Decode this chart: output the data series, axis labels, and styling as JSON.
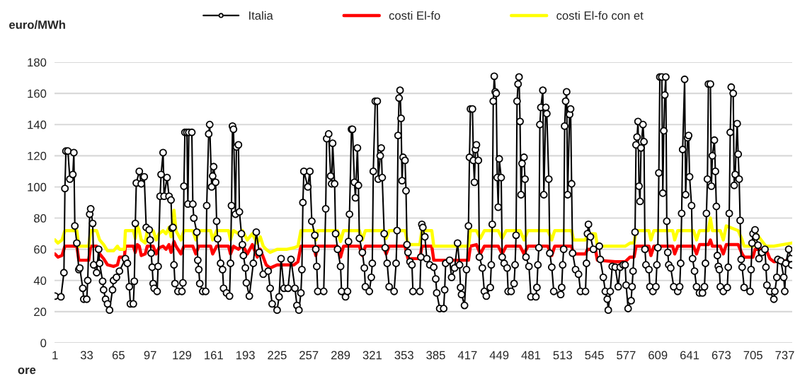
{
  "chart_data": {
    "type": "line",
    "xlabel": "ore",
    "ylabel": "euro/MWh",
    "xlim": [
      0.5,
      744.5
    ],
    "xticks": [
      1,
      33,
      65,
      97,
      129,
      161,
      193,
      225,
      257,
      289,
      321,
      353,
      385,
      417,
      449,
      481,
      513,
      545,
      577,
      609,
      641,
      673,
      705,
      737
    ],
    "ylim": [
      0,
      180
    ],
    "yticks": [
      0,
      20,
      40,
      60,
      80,
      100,
      120,
      140,
      160,
      180
    ],
    "grid": "y",
    "legend": "top",
    "series": [
      {
        "name": "Italia",
        "color": "#000000",
        "marker": "circle",
        "x": [
          1,
          7,
          10,
          11,
          12,
          14,
          16,
          19,
          20,
          21,
          23,
          25,
          26,
          29,
          30,
          33,
          34,
          36,
          37,
          39,
          40,
          43,
          45,
          46,
          49,
          50,
          52,
          54,
          56,
          59,
          60,
          63,
          66,
          72,
          74,
          76,
          77,
          80,
          81,
          82,
          83,
          86,
          88,
          91,
          93,
          96,
          97,
          98,
          99,
          100,
          101,
          104,
          105,
          107,
          108,
          110,
          111,
          114,
          116,
          118,
          119,
          120,
          121,
          122,
          125,
          129,
          130,
          131,
          132,
          134,
          135,
          136,
          139,
          140,
          141,
          144,
          145,
          146,
          147,
          150,
          153,
          154,
          156,
          157,
          159,
          160,
          161,
          163,
          164,
          165,
          168,
          170,
          171,
          174,
          177,
          178,
          179,
          180,
          181,
          183,
          184,
          186,
          187,
          189,
          190,
          191,
          193,
          194,
          197,
          201,
          204,
          207,
          211,
          216,
          218,
          220,
          225,
          227,
          229,
          232,
          236,
          239,
          243,
          245,
          247,
          249,
          250,
          251,
          252,
          256,
          258,
          260,
          263,
          264,
          265,
          266,
          272,
          274,
          275,
          277,
          279,
          280,
          281,
          283,
          284,
          286,
          289,
          290,
          294,
          296,
          297,
          298,
          300,
          301,
          303,
          304,
          306,
          307,
          308,
          311,
          313,
          314,
          318,
          320,
          321,
          322,
          324,
          326,
          327,
          329,
          330,
          331,
          333,
          334,
          336,
          338,
          343,
          345,
          346,
          347,
          348,
          349,
          350,
          351,
          352,
          354,
          355,
          356,
          357,
          359,
          361,
          362,
          369,
          370,
          371,
          372,
          374,
          376,
          379,
          383,
          385,
          386,
          389,
          393,
          394,
          395,
          399,
          401,
          404,
          407,
          409,
          410,
          411,
          414,
          416,
          418,
          419,
          420,
          422,
          423,
          424,
          425,
          426,
          428,
          429,
          432,
          434,
          436,
          440,
          441,
          442,
          443,
          444,
          445,
          446,
          447,
          448,
          449,
          451,
          452,
          454,
          457,
          458,
          461,
          464,
          465,
          466,
          467,
          468,
          469,
          470,
          471,
          472,
          474,
          475,
          476,
          479,
          481,
          486,
          487,
          488,
          489,
          490,
          491,
          493,
          494,
          496,
          497,
          499,
          500,
          502,
          504,
          511,
          512,
          513,
          514,
          515,
          516,
          517,
          518,
          520,
          521,
          522,
          523,
          526,
          529,
          531,
          536,
          537,
          538,
          539,
          541,
          544,
          550,
          551,
          554,
          556,
          558,
          559,
          561,
          563,
          566,
          569,
          571,
          574,
          576,
          577,
          579,
          582,
          583,
          584,
          586,
          587,
          588,
          589,
          590,
          591,
          592,
          594,
          595,
          596,
          597,
          600,
          601,
          604,
          607,
          608,
          609,
          610,
          611,
          613,
          614,
          615,
          616,
          617,
          618,
          619,
          620,
          622,
          625,
          629,
          631,
          632,
          633,
          634,
          636,
          637,
          639,
          640,
          641,
          643,
          644,
          646,
          648,
          651,
          654,
          656,
          657,
          658,
          659,
          660,
          662,
          663,
          664,
          666,
          667,
          668,
          669,
          670,
          671,
          672,
          675,
          679,
          680,
          681,
          682,
          683,
          685,
          686,
          687,
          689,
          690,
          691,
          692,
          693,
          694,
          696,
          702,
          703,
          704,
          705,
          707,
          708,
          710,
          711,
          714,
          717,
          718,
          719,
          722,
          726,
          727,
          729,
          730,
          733,
          736,
          737,
          738,
          741,
          743,
          744
        ],
        "values": [
          30,
          29.5,
          45,
          99,
          123,
          123,
          105,
          108,
          122,
          75,
          64,
          47,
          48,
          35,
          28,
          28,
          40,
          82.5,
          86,
          76.6,
          50,
          45,
          60,
          51,
          39.5,
          34,
          28,
          25,
          21,
          34,
          40,
          42,
          46,
          54,
          51,
          36,
          25,
          25,
          39.5,
          76.6,
          102.5,
          110,
          102,
          106.5,
          74,
          72.5,
          66,
          57.5,
          48.5,
          38,
          35,
          33,
          49,
          94,
          108,
          122,
          94,
          106,
          94,
          91.6,
          73.5,
          74,
          50,
          38,
          33,
          33,
          38.5,
          100.5,
          135,
          135,
          89,
          135,
          135,
          89,
          80,
          71,
          53,
          47,
          38,
          33,
          33,
          88,
          134,
          140,
          100,
          107,
          113,
          103,
          78,
          66.7,
          51,
          47,
          35,
          32,
          30,
          51,
          88,
          139,
          137,
          82.5,
          125.6,
          127,
          84,
          70,
          63,
          56,
          48,
          38.5,
          30,
          51,
          71,
          58,
          44,
          46,
          35,
          25,
          21,
          29.5,
          54,
          35,
          35,
          53.5,
          35,
          24,
          21,
          32,
          47,
          90,
          110,
          100,
          110,
          78,
          69,
          60,
          49,
          33,
          33,
          86,
          131,
          134,
          107,
          102,
          128,
          102,
          70,
          60,
          49,
          33,
          29.5,
          33,
          65,
          82.5,
          137,
          137,
          103,
          93,
          125,
          101,
          67,
          58,
          48,
          36,
          33,
          42,
          51,
          110,
          155,
          155,
          105,
          120,
          125,
          106,
          70,
          61,
          51,
          36,
          33,
          51,
          72,
          133,
          157,
          162,
          144,
          104,
          119,
          117,
          97.5,
          63,
          58,
          52,
          50,
          33,
          33,
          55,
          76,
          74,
          68,
          54,
          50,
          48.5,
          41,
          32,
          22,
          22,
          34,
          51,
          53,
          42,
          48,
          64,
          50,
          35.5,
          31,
          24,
          47,
          75,
          119,
          150,
          150,
          117,
          103,
          124,
          127,
          117,
          55,
          48,
          33,
          30,
          35.5,
          50,
          76,
          155,
          171,
          161,
          160,
          106,
          87,
          118,
          106,
          55,
          51,
          48,
          33,
          33,
          38,
          50,
          69,
          155,
          166,
          170.5,
          142,
          95,
          115,
          119,
          105,
          55,
          49,
          29.5,
          29.5,
          35.5,
          50,
          61,
          140,
          151,
          162,
          95,
          151,
          147,
          105,
          57.5,
          48.5,
          33,
          31,
          35.5,
          50,
          60,
          139,
          155,
          161,
          95,
          146.5,
          150,
          102,
          57.5,
          47,
          44,
          33,
          33,
          51,
          70,
          76,
          68,
          60,
          62,
          53.5,
          42,
          33,
          28,
          21,
          33,
          49,
          48.5,
          36,
          48.5,
          50,
          50,
          37,
          22,
          27,
          36,
          46,
          71,
          127,
          132,
          142,
          100.5,
          90.7,
          125,
          140,
          129,
          60,
          50,
          47,
          36,
          33,
          36,
          50,
          61,
          109,
          170.5,
          170.5,
          96,
          136,
          159,
          170.5,
          78,
          58,
          50,
          48,
          36,
          33,
          36,
          51,
          83,
          124,
          169,
          95,
          131.5,
          133,
          106.5,
          88,
          54,
          46,
          36,
          32,
          32,
          36,
          51,
          83,
          105,
          166,
          166,
          100.5,
          120,
          130,
          110,
          87.5,
          56,
          49,
          47,
          36,
          33,
          35.5,
          48.5,
          83,
          135,
          164,
          160,
          101,
          108,
          140.6,
          121,
          105,
          78.5,
          53.5,
          48.5,
          35.5,
          33,
          47,
          64,
          70,
          72.5,
          68,
          62.6,
          54,
          58,
          60,
          48.5,
          37,
          33,
          28,
          33,
          42,
          53.5,
          52.6,
          42,
          33,
          51,
          60,
          54,
          50
        ]
      },
      {
        "name": "costi El-fo",
        "color": "#ff0000",
        "marker": "none",
        "x": [
          1,
          4,
          8,
          11,
          23,
          25,
          35,
          37,
          43,
          46,
          50,
          54,
          60,
          64,
          66,
          71,
          72,
          80,
          82,
          84,
          86,
          88,
          92,
          94,
          100,
          103,
          106,
          110,
          113,
          116,
          118,
          121,
          123,
          128,
          131,
          140,
          143,
          146,
          158,
          160,
          164,
          176,
          178,
          181,
          186,
          190,
          195,
          200,
          205,
          208,
          211,
          214,
          218,
          225,
          235,
          242,
          246,
          249,
          262,
          264,
          266,
          286,
          289,
          292,
          308,
          311,
          314,
          332,
          335,
          338,
          354,
          357,
          369,
          371,
          381,
          383,
          418,
          420,
          426,
          430,
          434,
          440,
          448,
          452,
          456,
          470,
          474,
          478,
          498,
          502,
          505,
          522,
          524,
          536,
          538,
          546,
          548,
          566,
          576,
          581,
          585,
          587,
          600,
          602,
          605,
          624,
          626,
          629,
          645,
          648,
          651,
          660,
          662,
          664,
          672,
          675,
          678,
          690,
          694,
          696,
          705,
          707,
          718,
          722,
          726,
          744
        ],
        "values": [
          57,
          55,
          56,
          62,
          62,
          53,
          53,
          62,
          62,
          57,
          54,
          50,
          49,
          50,
          55,
          55,
          62,
          62,
          58,
          63,
          62,
          56,
          57,
          62,
          62,
          57,
          61,
          62,
          60,
          63,
          58,
          65,
          62,
          57,
          62,
          62,
          57,
          62,
          62,
          57,
          62,
          62,
          57,
          62,
          60,
          63,
          57,
          63,
          55,
          60,
          55,
          50,
          48,
          50,
          50,
          50,
          52,
          62,
          62,
          56,
          62,
          62,
          55,
          62,
          62,
          56,
          62,
          62,
          57,
          62,
          62,
          54,
          54,
          62,
          62,
          53,
          53,
          62,
          63,
          57,
          62,
          62,
          62,
          57,
          62,
          62,
          57,
          62,
          62,
          56,
          62,
          62,
          57,
          57,
          60,
          60,
          53,
          52,
          52,
          55,
          55,
          62,
          62,
          56,
          62,
          62,
          57,
          62,
          62,
          57,
          63,
          63,
          66,
          62,
          62,
          57,
          63,
          63,
          57,
          55,
          55,
          60,
          60,
          54,
          52,
          53
        ]
      },
      {
        "name": "costi El-fo con et",
        "color": "#ffff00",
        "marker": "none",
        "x": [
          1,
          4,
          8,
          11,
          23,
          25,
          35,
          37,
          43,
          46,
          50,
          54,
          60,
          64,
          66,
          71,
          72,
          80,
          82,
          84,
          86,
          88,
          92,
          94,
          100,
          103,
          106,
          110,
          113,
          116,
          118,
          121,
          123,
          128,
          131,
          140,
          143,
          146,
          158,
          160,
          164,
          176,
          178,
          181,
          186,
          190,
          195,
          200,
          205,
          208,
          211,
          214,
          218,
          225,
          235,
          242,
          246,
          249,
          262,
          264,
          266,
          286,
          289,
          292,
          308,
          311,
          314,
          332,
          335,
          338,
          354,
          357,
          369,
          371,
          381,
          383,
          418,
          420,
          426,
          430,
          434,
          440,
          448,
          452,
          456,
          470,
          474,
          478,
          498,
          502,
          505,
          522,
          524,
          536,
          538,
          546,
          548,
          566,
          576,
          581,
          585,
          587,
          600,
          602,
          605,
          624,
          626,
          629,
          645,
          648,
          651,
          660,
          662,
          664,
          672,
          675,
          678,
          690,
          694,
          696,
          705,
          707,
          718,
          722,
          726,
          744
        ],
        "values": [
          66,
          64,
          66,
          72,
          72,
          62,
          62,
          72,
          72,
          66,
          63,
          59,
          59,
          62,
          60,
          60,
          72,
          72,
          67,
          75,
          72,
          66,
          64,
          72,
          72,
          66,
          70,
          72,
          70,
          74,
          68,
          85,
          72,
          66,
          72,
          72,
          66,
          72,
          72,
          66,
          72,
          72,
          66,
          72,
          70,
          72,
          66,
          70,
          64,
          68,
          62,
          60,
          58,
          60,
          60,
          61,
          62,
          72,
          72,
          66,
          72,
          72,
          65,
          72,
          72,
          66,
          72,
          72,
          67,
          72,
          72,
          63,
          63,
          72,
          72,
          62,
          62,
          72,
          72,
          67,
          72,
          72,
          72,
          67,
          72,
          72,
          66,
          72,
          72,
          66,
          72,
          72,
          66,
          66,
          70,
          70,
          62,
          62,
          62,
          64,
          64,
          72,
          72,
          66,
          72,
          72,
          66,
          72,
          72,
          66,
          72,
          72,
          80,
          72,
          72,
          66,
          75,
          72,
          66,
          62,
          62,
          71,
          62,
          62,
          62,
          64
        ]
      }
    ]
  }
}
